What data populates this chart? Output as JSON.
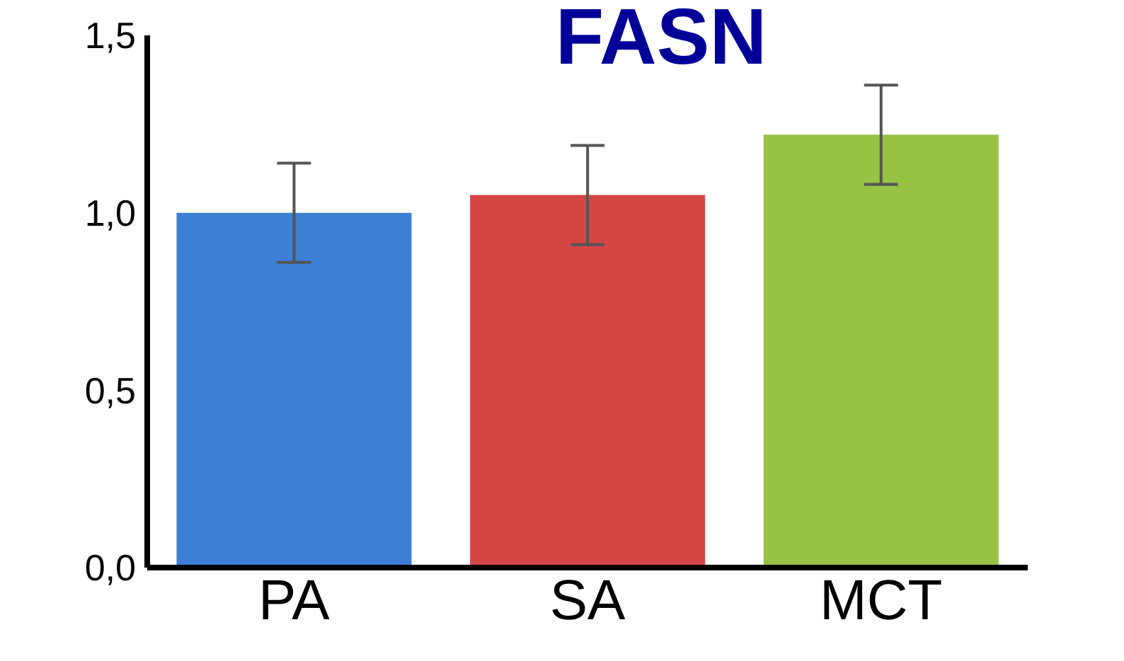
{
  "chart_data": {
    "type": "bar",
    "title": "FASN",
    "categories": [
      "PA",
      "SA",
      "MCT"
    ],
    "values": [
      1.0,
      1.05,
      1.22
    ],
    "colors": [
      "#3d7fd4",
      "#d64545",
      "#97c244"
    ],
    "errors": [
      0.14,
      0.14,
      0.14
    ],
    "ylim": [
      0,
      1.5
    ],
    "yticks": [
      {
        "value": 0,
        "label": "0,0"
      },
      {
        "value": 0.5,
        "label": "0,5"
      },
      {
        "value": 1,
        "label": "1,0"
      },
      {
        "value": 1.5,
        "label": "1,5"
      }
    ],
    "grid": false,
    "legend": false
  }
}
